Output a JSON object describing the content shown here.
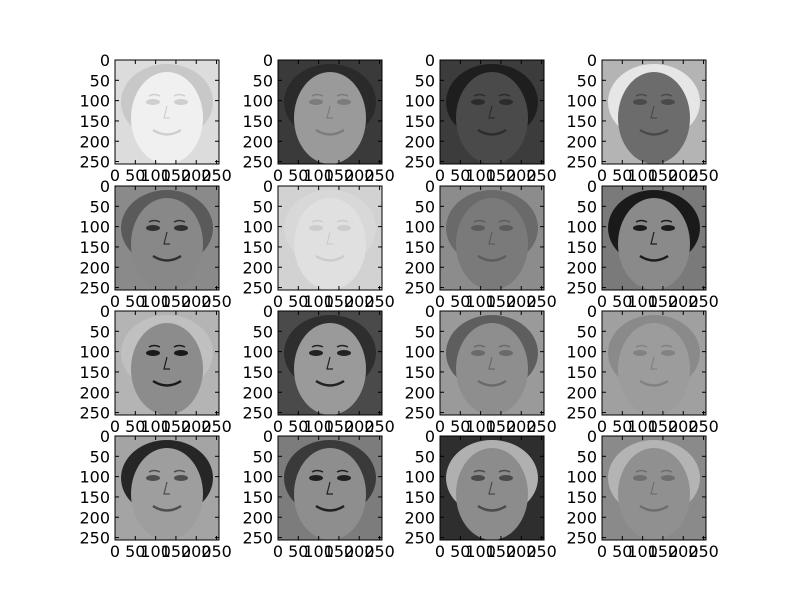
{
  "figure": {
    "background": "#ffffff",
    "grid": {
      "rows": 4,
      "cols": 4
    }
  },
  "chart_data": {
    "type": "heatmap",
    "colormap": "gray",
    "grid": false,
    "image_size": [
      256,
      256
    ],
    "xlim": [
      0,
      256
    ],
    "ylim": [
      256,
      0
    ],
    "xticks": [
      0,
      50,
      100,
      150,
      200,
      250
    ],
    "yticks": [
      0,
      50,
      100,
      150,
      200,
      250
    ],
    "x_tick_labels": [
      "0",
      "50",
      "100",
      "150",
      "200",
      "250"
    ],
    "y_tick_labels": [
      "0",
      "50",
      "100",
      "150",
      "200",
      "250"
    ],
    "panels": [
      {
        "bg": "#dcdcdc",
        "face": "#f0f0f0",
        "features": "#cfcfcf",
        "hair": "#c8c8c8"
      },
      {
        "bg": "#3a3a3a",
        "face": "#9a9a9a",
        "features": "#7c7c7c",
        "hair": "#2a2a2a"
      },
      {
        "bg": "#3c3c3c",
        "face": "#4a4a4a",
        "features": "#2c2c2c",
        "hair": "#1e1e1e"
      },
      {
        "bg": "#b4b4b4",
        "face": "#6c6c6c",
        "features": "#4a4a4a",
        "hair": "#e6e6e6"
      },
      {
        "bg": "#8a8a8a",
        "face": "#888888",
        "features": "#303030",
        "hair": "#5a5a5a"
      },
      {
        "bg": "#d2d2d2",
        "face": "#e0e0e0",
        "features": "#cccccc",
        "hair": "#d8d8d8"
      },
      {
        "bg": "#8c8c8c",
        "face": "#7a7a7a",
        "features": "#5c5c5c",
        "hair": "#6a6a6a"
      },
      {
        "bg": "#7a7a7a",
        "face": "#8a8a8a",
        "features": "#1c1c1c",
        "hair": "#1a1a1a"
      },
      {
        "bg": "#b4b4b4",
        "face": "#8c8c8c",
        "features": "#1a1a1a",
        "hair": "#c0c0c0"
      },
      {
        "bg": "#4a4a4a",
        "face": "#9a9a9a",
        "features": "#222222",
        "hair": "#2e2e2e"
      },
      {
        "bg": "#9a9a9a",
        "face": "#8e8e8e",
        "features": "#6a6a6a",
        "hair": "#5e5e5e"
      },
      {
        "bg": "#a0a0a0",
        "face": "#9c9c9c",
        "features": "#828282",
        "hair": "#8a8a8a"
      },
      {
        "bg": "#a4a4a4",
        "face": "#9e9e9e",
        "features": "#4e4e4e",
        "hair": "#262626"
      },
      {
        "bg": "#7c7c7c",
        "face": "#8e8e8e",
        "features": "#202020",
        "hair": "#3a3a3a"
      },
      {
        "bg": "#2e2e2e",
        "face": "#8c8c8c",
        "features": "#4a4a4a",
        "hair": "#b0b0b0"
      },
      {
        "bg": "#8a8a8a",
        "face": "#909090",
        "features": "#6e6e6e",
        "hair": "#b4b4b4"
      }
    ]
  }
}
